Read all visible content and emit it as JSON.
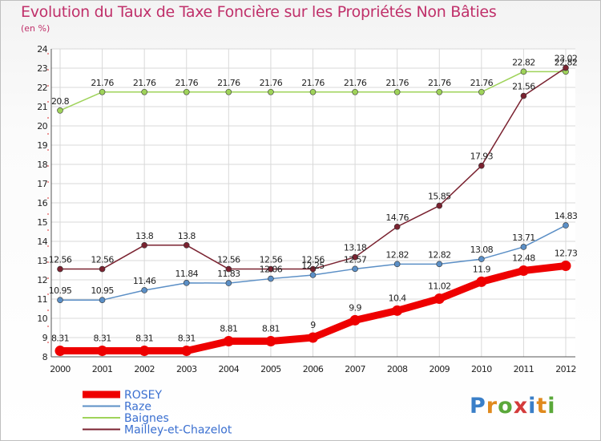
{
  "title": "Evolution du Taux de Taxe Foncière sur les Propriétés Non Bâties",
  "subtitle": "(en %)",
  "logo": [
    "P",
    "r",
    "o",
    "x",
    "i",
    "t",
    "i"
  ],
  "chart_data": {
    "type": "line",
    "x": [
      "2000",
      "2001",
      "2002",
      "2003",
      "2004",
      "2005",
      "2006",
      "2007",
      "2008",
      "2009",
      "2010",
      "2011",
      "2012"
    ],
    "ylim": [
      8,
      24
    ],
    "yticks": [
      8,
      9,
      10,
      11,
      12,
      13,
      14,
      15,
      16,
      17,
      18,
      19,
      20,
      21,
      22,
      23,
      24
    ],
    "grid": true,
    "legend_position": "bottom-left",
    "series": [
      {
        "name": "ROSEY",
        "color": "#ee0000",
        "width": 9,
        "values": [
          8.31,
          8.31,
          8.31,
          8.31,
          8.81,
          8.81,
          9,
          9.9,
          10.4,
          11.02,
          11.9,
          12.48,
          12.73
        ],
        "labels": [
          "8.31",
          "8.31",
          "8.31",
          "8.31",
          "8.81",
          "8.81",
          "9",
          "9.9",
          "10.4",
          "11.02",
          "11.9",
          "12.48",
          "12.73"
        ]
      },
      {
        "name": "Raze",
        "color": "#5b8fc6",
        "width": 1.5,
        "values": [
          10.95,
          10.95,
          11.46,
          11.84,
          11.83,
          12.06,
          12.25,
          12.57,
          12.82,
          12.82,
          13.08,
          13.71,
          14.83
        ],
        "labels": [
          "10.95",
          "10.95",
          "11.46",
          "11.84",
          "11.83",
          "12.06",
          "12.25",
          "12.57",
          "12.82",
          "12.82",
          "13.08",
          "13.71",
          "14.83"
        ]
      },
      {
        "name": "Baignes",
        "color": "#9fd35a",
        "width": 1.5,
        "values": [
          20.8,
          21.76,
          21.76,
          21.76,
          21.76,
          21.76,
          21.76,
          21.76,
          21.76,
          21.76,
          21.76,
          22.82,
          22.82
        ],
        "labels": [
          "20.8",
          "21.76",
          "21.76",
          "21.76",
          "21.76",
          "21.76",
          "21.76",
          "21.76",
          "21.76",
          "21.76",
          "21.76",
          "22.82",
          "22.82"
        ]
      },
      {
        "name": "Mailley-et-Chazelot",
        "color": "#7a2230",
        "width": 1.5,
        "values": [
          12.56,
          12.56,
          13.8,
          13.8,
          12.56,
          12.56,
          12.56,
          13.18,
          14.76,
          15.85,
          17.93,
          21.56,
          23.02
        ],
        "labels": [
          "12.56",
          "12.56",
          "13.8",
          "13.8",
          "12.56",
          "12.56",
          "12.56",
          "13.18",
          "14.76",
          "15.85",
          "17.93",
          "21.56",
          "23.02"
        ]
      }
    ]
  }
}
